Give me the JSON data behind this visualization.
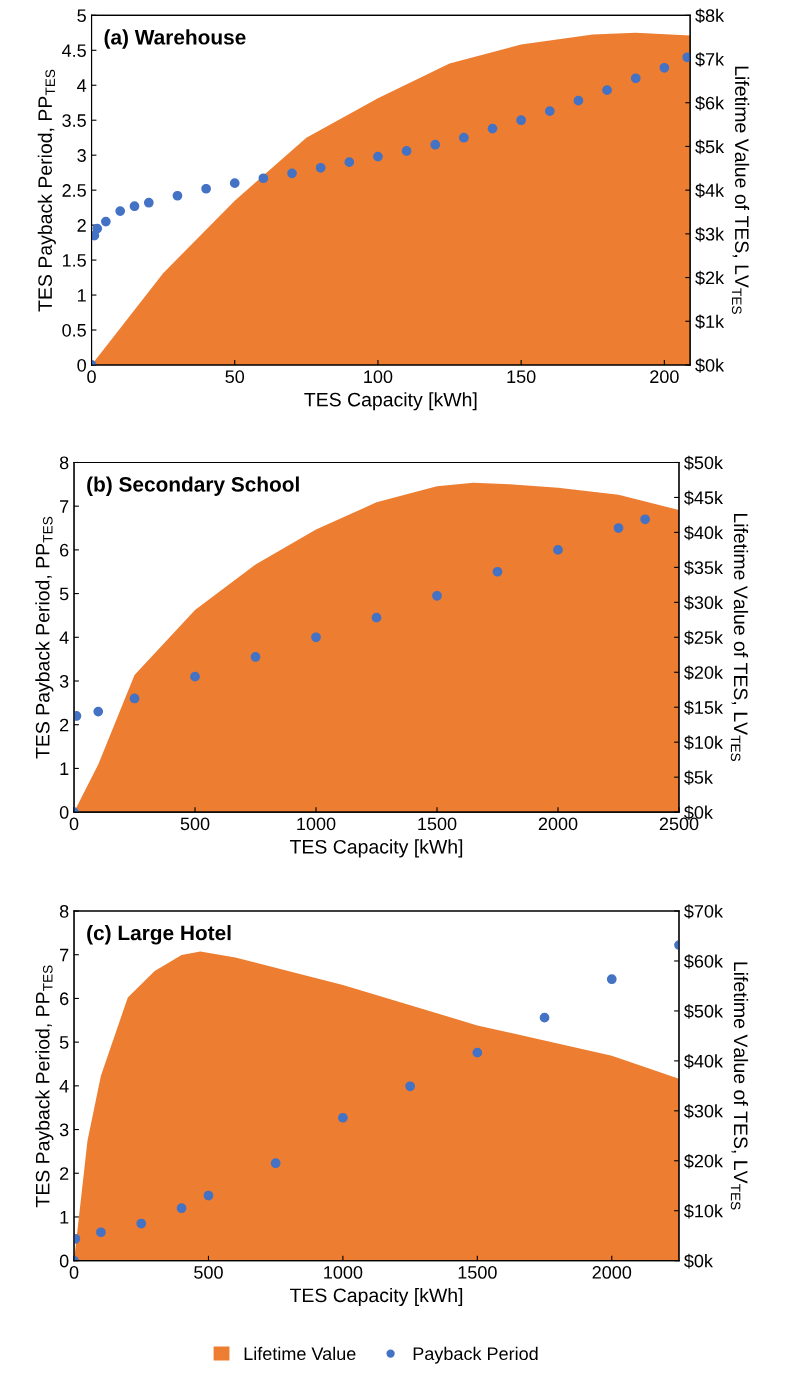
{
  "chart_data": [
    {
      "type": "area",
      "title": "(a) Warehouse",
      "xlabel": "TES Capacity [kWh]",
      "ylabel": "TES Payback Period, PP$_{TES}$",
      "y2label": "Lifetime Value of TES, LV$_{TES}$",
      "xlim": [
        0,
        209
      ],
      "xticks": [
        0,
        50,
        100,
        150,
        200
      ],
      "ylim": [
        0,
        5
      ],
      "yticks": [
        0,
        0.5,
        1,
        1.5,
        2,
        2.5,
        3,
        3.5,
        4,
        4.5,
        5
      ],
      "y2lim": [
        0,
        8000
      ],
      "y2ticks": [
        {
          "value": 0,
          "label": "$0k"
        },
        {
          "value": 1000,
          "label": "$1k"
        },
        {
          "value": 2000,
          "label": "$2k"
        },
        {
          "value": 3000,
          "label": "$3k"
        },
        {
          "value": 4000,
          "label": "$4k"
        },
        {
          "value": 5000,
          "label": "$5k"
        },
        {
          "value": 6000,
          "label": "$6k"
        },
        {
          "value": 7000,
          "label": "$7k"
        },
        {
          "value": 8000,
          "label": "$8k"
        }
      ],
      "grid": false,
      "legend": false,
      "series": [
        {
          "axis": "y2",
          "color": "#ed7d31",
          "x": [
            0,
            25,
            50,
            75,
            100,
            125,
            150,
            175,
            190,
            209
          ],
          "values": [
            0,
            2100,
            3760,
            5200,
            6100,
            6900,
            7330,
            7560,
            7600,
            7540
          ]
        },
        {
          "type": "scatter",
          "color": "#4472c4",
          "marker": "circle",
          "x": [
            0,
            1,
            2,
            5,
            10,
            15,
            20,
            30,
            40,
            50,
            60,
            70,
            80,
            90,
            100,
            110,
            120,
            130,
            140,
            150,
            160,
            170,
            180,
            190,
            200,
            208
          ],
          "values": [
            0,
            1.85,
            1.95,
            2.05,
            2.2,
            2.27,
            2.32,
            2.42,
            2.52,
            2.6,
            2.67,
            2.74,
            2.82,
            2.9,
            2.98,
            3.06,
            3.15,
            3.25,
            3.38,
            3.5,
            3.63,
            3.78,
            3.93,
            4.1,
            4.25,
            4.4
          ]
        }
      ]
    },
    {
      "type": "area",
      "title": "(b) Secondary School",
      "xlabel": "TES Capacity [kWh]",
      "ylabel": "TES Payback Period, PP$_{TES}$",
      "y2label": "Lifetime Value of TES, LV$_{TES}$",
      "xlim": [
        0,
        2500
      ],
      "xticks": [
        0,
        500,
        1000,
        1500,
        2000,
        2500
      ],
      "ylim": [
        0,
        8
      ],
      "yticks": [
        0,
        1,
        2,
        3,
        4,
        5,
        6,
        7,
        8
      ],
      "y2lim": [
        0,
        50000
      ],
      "y2ticks": [
        {
          "value": 0,
          "label": "$0k"
        },
        {
          "value": 5000,
          "label": "$5k"
        },
        {
          "value": 10000,
          "label": "$10k"
        },
        {
          "value": 15000,
          "label": "$15k"
        },
        {
          "value": 20000,
          "label": "$20k"
        },
        {
          "value": 25000,
          "label": "$25k"
        },
        {
          "value": 30000,
          "label": "$30k"
        },
        {
          "value": 35000,
          "label": "$35k"
        },
        {
          "value": 40000,
          "label": "$40k"
        },
        {
          "value": 45000,
          "label": "$45k"
        },
        {
          "value": 50000,
          "label": "$50k"
        }
      ],
      "grid": false,
      "legend": false,
      "series": [
        {
          "axis": "y2",
          "color": "#ed7d31",
          "x": [
            0,
            100,
            250,
            500,
            750,
            1000,
            1250,
            1500,
            1650,
            1800,
            2000,
            2250,
            2500
          ],
          "values": [
            0,
            6800,
            19600,
            28900,
            35400,
            40400,
            44300,
            46600,
            47100,
            46900,
            46400,
            45400,
            43200
          ]
        },
        {
          "type": "scatter",
          "color": "#4472c4",
          "marker": "circle",
          "x": [
            0,
            10,
            100,
            250,
            500,
            750,
            1000,
            1250,
            1500,
            1750,
            2000,
            2250,
            2360
          ],
          "values": [
            0,
            2.2,
            2.3,
            2.6,
            3.1,
            3.55,
            4.0,
            4.45,
            4.95,
            5.5,
            6.0,
            6.5,
            6.7
          ]
        }
      ]
    },
    {
      "type": "area",
      "title": "(c) Large Hotel",
      "xlabel": "TES Capacity [kWh]",
      "ylabel": "TES Payback Period, PP$_{TES}$",
      "y2label": "Lifetime Value of TES, LV$_{TES}$",
      "xlim": [
        0,
        2250
      ],
      "xticks": [
        0,
        500,
        1000,
        1500,
        2000
      ],
      "ylim": [
        0,
        8
      ],
      "yticks": [
        0,
        1,
        2,
        3,
        4,
        5,
        6,
        7,
        8
      ],
      "y2lim": [
        0,
        70000
      ],
      "y2ticks": [
        {
          "value": 0,
          "label": "$0k"
        },
        {
          "value": 10000,
          "label": "$10k"
        },
        {
          "value": 20000,
          "label": "$20k"
        },
        {
          "value": 30000,
          "label": "$30k"
        },
        {
          "value": 40000,
          "label": "$40k"
        },
        {
          "value": 50000,
          "label": "$50k"
        },
        {
          "value": 60000,
          "label": "$60k"
        },
        {
          "value": 70000,
          "label": "$70k"
        }
      ],
      "grid": false,
      "legend": "bottom",
      "series": [
        {
          "axis": "y2",
          "name": "Lifetime Value",
          "color": "#ed7d31",
          "x": [
            0,
            50,
            100,
            200,
            300,
            400,
            470,
            600,
            1000,
            1500,
            2000,
            2250
          ],
          "values": [
            0,
            24000,
            37000,
            52700,
            58000,
            61200,
            61900,
            60700,
            55200,
            47100,
            41000,
            36400
          ]
        },
        {
          "type": "scatter",
          "name": "Payback Period",
          "color": "#4472c4",
          "marker": "circle",
          "x": [
            0,
            5,
            100,
            250,
            400,
            500,
            750,
            1000,
            1250,
            1500,
            1750,
            2000,
            2250
          ],
          "values": [
            0,
            0.5,
            0.65,
            0.85,
            1.2,
            1.49,
            2.23,
            3.27,
            3.99,
            4.76,
            5.56,
            6.44,
            7.22
          ]
        }
      ]
    }
  ]
}
